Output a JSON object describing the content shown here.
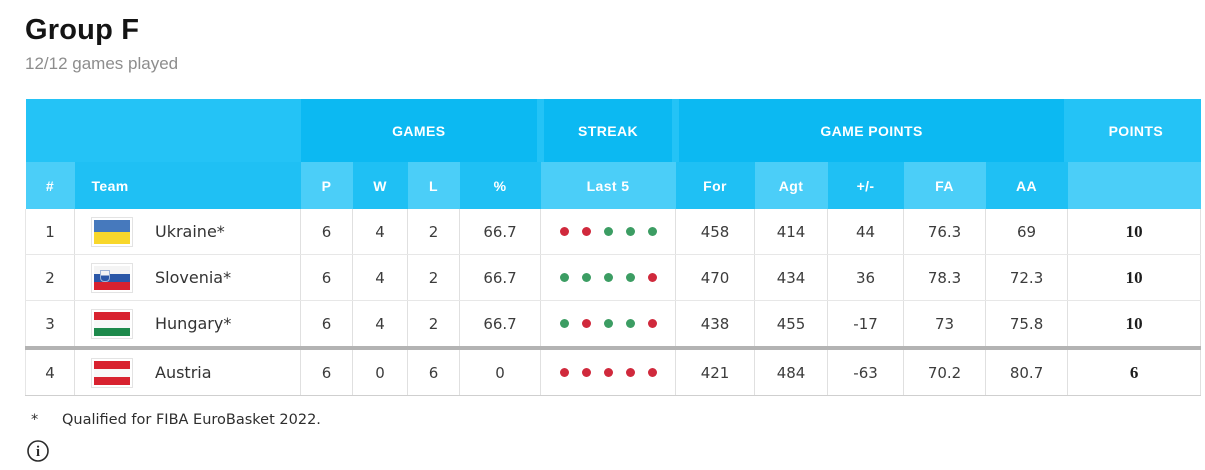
{
  "header": {
    "title": "Group F",
    "subtitle": "12/12 games played"
  },
  "table": {
    "group_headers": {
      "games": "GAMES",
      "streak": "STREAK",
      "game_points": "GAME POINTS",
      "points": "POINTS"
    },
    "sub_headers": {
      "rank": "#",
      "team": "Team",
      "played": "P",
      "wins": "W",
      "losses": "L",
      "win_pct": "%",
      "last5": "Last 5",
      "for": "For",
      "against": "Agt",
      "plus_minus": "+/-",
      "fa": "FA",
      "aa": "AA",
      "points": ""
    },
    "cutoff_after_row_index": 2,
    "rows": [
      {
        "rank": "1",
        "team": "Ukraine*",
        "flag": "ukraine",
        "played": "6",
        "wins": "4",
        "losses": "2",
        "win_pct": "66.7",
        "last5": [
          "loss",
          "loss",
          "win",
          "win",
          "win"
        ],
        "for": "458",
        "against": "414",
        "plus_minus": "44",
        "fa": "76.3",
        "aa": "69",
        "points": "10"
      },
      {
        "rank": "2",
        "team": "Slovenia*",
        "flag": "slovenia",
        "played": "6",
        "wins": "4",
        "losses": "2",
        "win_pct": "66.7",
        "last5": [
          "win",
          "win",
          "win",
          "win",
          "loss"
        ],
        "for": "470",
        "against": "434",
        "plus_minus": "36",
        "fa": "78.3",
        "aa": "72.3",
        "points": "10"
      },
      {
        "rank": "3",
        "team": "Hungary*",
        "flag": "hungary",
        "played": "6",
        "wins": "4",
        "losses": "2",
        "win_pct": "66.7",
        "last5": [
          "win",
          "loss",
          "win",
          "win",
          "loss"
        ],
        "for": "438",
        "against": "455",
        "plus_minus": "-17",
        "fa": "73",
        "aa": "75.8",
        "points": "10"
      },
      {
        "rank": "4",
        "team": "Austria",
        "flag": "austria",
        "played": "6",
        "wins": "0",
        "losses": "6",
        "win_pct": "0",
        "last5": [
          "loss",
          "loss",
          "loss",
          "loss",
          "loss"
        ],
        "for": "421",
        "against": "484",
        "plus_minus": "-63",
        "fa": "70.2",
        "aa": "80.7",
        "points": "6"
      }
    ]
  },
  "footnote": {
    "marker": "*",
    "text": "Qualified for FIBA EuroBasket 2022."
  },
  "colors": {
    "header_base": "#24c3f6",
    "header_base2": "#1fc0f4",
    "header_dark": "#0cb9f2",
    "header_light": "#4bcef8",
    "streak_win": "#3c9d63",
    "streak_loss": "#d0293c",
    "cutoff_line": "#b3b3b3"
  }
}
